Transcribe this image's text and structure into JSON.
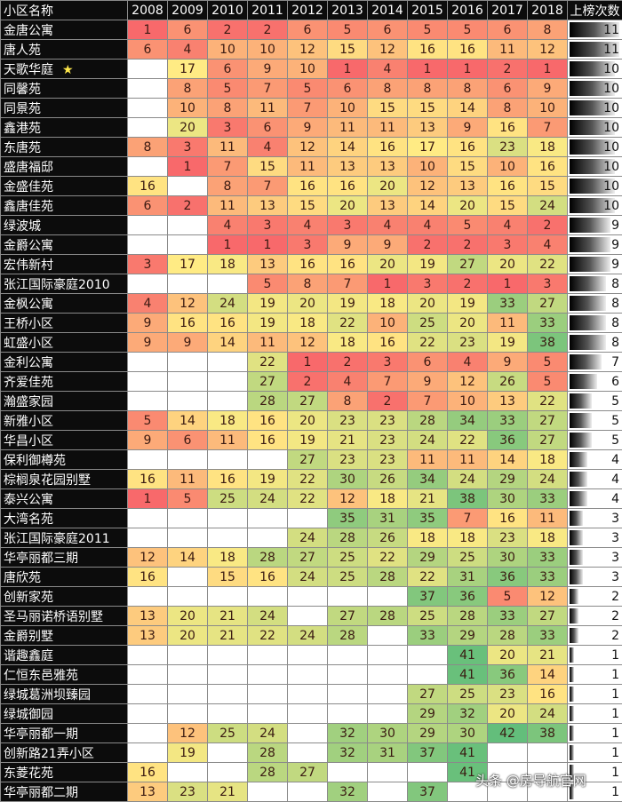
{
  "chart_data": {
    "type": "table",
    "title": "",
    "header": {
      "name_col": "小区名称",
      "count_col": "上榜次数"
    },
    "years": [
      "2008",
      "2009",
      "2010",
      "2011",
      "2012",
      "2013",
      "2014",
      "2015",
      "2016",
      "2017",
      "2018"
    ],
    "rows": [
      {
        "name": "金唐公寓",
        "star": false,
        "values": [
          1,
          6,
          2,
          2,
          6,
          5,
          6,
          5,
          5,
          6,
          8
        ],
        "count": 11
      },
      {
        "name": "唐人苑",
        "star": false,
        "values": [
          6,
          4,
          10,
          10,
          12,
          15,
          12,
          16,
          16,
          11,
          12
        ],
        "count": 11
      },
      {
        "name": "天歌华庭",
        "star": true,
        "values": [
          null,
          17,
          6,
          9,
          10,
          1,
          4,
          1,
          1,
          2,
          1
        ],
        "count": 10
      },
      {
        "name": "同馨苑",
        "star": false,
        "values": [
          null,
          8,
          5,
          7,
          5,
          6,
          8,
          8,
          8,
          6,
          9
        ],
        "count": 10
      },
      {
        "name": "同景苑",
        "star": false,
        "values": [
          null,
          10,
          8,
          11,
          7,
          10,
          15,
          15,
          14,
          8,
          10
        ],
        "count": 10
      },
      {
        "name": "鑫港苑",
        "star": false,
        "values": [
          null,
          20,
          3,
          6,
          9,
          11,
          11,
          13,
          9,
          16,
          7
        ],
        "count": 10
      },
      {
        "name": "东唐苑",
        "star": false,
        "values": [
          8,
          3,
          11,
          4,
          12,
          14,
          16,
          17,
          16,
          23,
          18
        ],
        "count": 10
      },
      {
        "name": "盛唐福邸",
        "star": false,
        "values": [
          null,
          1,
          7,
          15,
          11,
          13,
          13,
          10,
          15,
          10,
          16
        ],
        "count": 10
      },
      {
        "name": "金盛佳苑",
        "star": false,
        "values": [
          16,
          null,
          8,
          7,
          16,
          16,
          20,
          12,
          13,
          16,
          15
        ],
        "count": 10
      },
      {
        "name": "鑫唐佳苑",
        "star": false,
        "values": [
          6,
          2,
          11,
          13,
          15,
          20,
          13,
          14,
          20,
          15,
          24
        ],
        "count": 10
      },
      {
        "name": "绿波城",
        "star": false,
        "values": [
          null,
          null,
          4,
          3,
          4,
          3,
          4,
          4,
          5,
          4,
          2
        ],
        "count": 9
      },
      {
        "name": "金爵公寓",
        "star": false,
        "values": [
          null,
          null,
          1,
          1,
          3,
          9,
          9,
          2,
          2,
          3,
          4
        ],
        "count": 9
      },
      {
        "name": "宏伟新村",
        "star": false,
        "values": [
          3,
          17,
          18,
          13,
          16,
          16,
          20,
          19,
          27,
          20,
          22
        ],
        "count": 9
      },
      {
        "name": "张江国际豪庭2010",
        "star": false,
        "values": [
          null,
          null,
          null,
          5,
          8,
          7,
          1,
          3,
          2,
          1,
          3
        ],
        "count": 8
      },
      {
        "name": "金枫公寓",
        "star": false,
        "values": [
          4,
          12,
          24,
          19,
          20,
          19,
          18,
          20,
          19,
          33,
          27
        ],
        "count": 8
      },
      {
        "name": "王桥小区",
        "star": false,
        "values": [
          9,
          16,
          16,
          19,
          18,
          22,
          10,
          25,
          20,
          11,
          33
        ],
        "count": 8
      },
      {
        "name": "虹盛小区",
        "star": false,
        "values": [
          9,
          9,
          14,
          11,
          12,
          18,
          16,
          22,
          23,
          19,
          38
        ],
        "count": 8
      },
      {
        "name": "金利公寓",
        "star": false,
        "values": [
          null,
          null,
          null,
          22,
          1,
          2,
          3,
          6,
          4,
          9,
          5
        ],
        "count": 7
      },
      {
        "name": "齐爱佳苑",
        "star": false,
        "values": [
          null,
          null,
          null,
          27,
          2,
          4,
          7,
          9,
          12,
          26,
          5
        ],
        "count": 6
      },
      {
        "name": "瀚盛家园",
        "star": false,
        "values": [
          null,
          null,
          null,
          28,
          27,
          8,
          2,
          7,
          10,
          13,
          22
        ],
        "count": 5
      },
      {
        "name": "新雅小区",
        "star": false,
        "values": [
          5,
          14,
          18,
          16,
          20,
          23,
          23,
          28,
          34,
          33,
          27
        ],
        "count": 5
      },
      {
        "name": "华昌小区",
        "star": false,
        "values": [
          9,
          6,
          11,
          16,
          19,
          21,
          23,
          24,
          22,
          36,
          27
        ],
        "count": 5
      },
      {
        "name": "保利御樽苑",
        "star": false,
        "values": [
          null,
          null,
          null,
          null,
          27,
          23,
          23,
          11,
          11,
          14,
          18
        ],
        "count": 4
      },
      {
        "name": "棕榈泉花园别墅",
        "star": false,
        "values": [
          16,
          11,
          16,
          19,
          22,
          30,
          26,
          34,
          24,
          29,
          24
        ],
        "count": 4
      },
      {
        "name": "泰兴公寓",
        "star": false,
        "values": [
          1,
          5,
          25,
          24,
          22,
          12,
          18,
          21,
          38,
          30,
          33
        ],
        "count": 4
      },
      {
        "name": "大湾名苑",
        "star": false,
        "values": [
          null,
          null,
          null,
          null,
          null,
          35,
          31,
          35,
          7,
          16,
          11
        ],
        "count": 3
      },
      {
        "name": "张江国际豪庭2011",
        "star": false,
        "values": [
          null,
          null,
          null,
          null,
          24,
          28,
          26,
          18,
          18,
          23,
          18
        ],
        "count": 3
      },
      {
        "name": "华亭丽都三期",
        "star": false,
        "values": [
          12,
          14,
          18,
          28,
          27,
          25,
          22,
          29,
          25,
          30,
          33
        ],
        "count": 3
      },
      {
        "name": "唐欣苑",
        "star": false,
        "values": [
          16,
          null,
          15,
          16,
          24,
          25,
          28,
          22,
          31,
          36,
          33
        ],
        "count": 3
      },
      {
        "name": "创新家苑",
        "star": false,
        "values": [
          null,
          null,
          null,
          null,
          null,
          null,
          null,
          37,
          36,
          5,
          12
        ],
        "count": 2
      },
      {
        "name": "圣马丽诺桥语别墅",
        "star": false,
        "values": [
          13,
          20,
          21,
          24,
          null,
          27,
          28,
          25,
          28,
          33,
          27
        ],
        "count": 2
      },
      {
        "name": "金爵别墅",
        "star": false,
        "values": [
          13,
          20,
          21,
          22,
          24,
          28,
          null,
          33,
          29,
          28,
          33
        ],
        "count": 2
      },
      {
        "name": "谐趣鑫庭",
        "star": false,
        "values": [
          null,
          null,
          null,
          null,
          null,
          null,
          null,
          null,
          41,
          20,
          21
        ],
        "count": 1
      },
      {
        "name": "仁恒东邑雅苑",
        "star": false,
        "values": [
          null,
          null,
          null,
          null,
          null,
          null,
          null,
          null,
          41,
          36,
          14
        ],
        "count": 1
      },
      {
        "name": "绿城葛洲坝臻园",
        "star": false,
        "values": [
          null,
          null,
          null,
          null,
          null,
          null,
          null,
          27,
          25,
          23,
          16
        ],
        "count": 1
      },
      {
        "name": "绿城御园",
        "star": false,
        "values": [
          null,
          null,
          null,
          null,
          null,
          null,
          null,
          29,
          32,
          20,
          24
        ],
        "count": 1
      },
      {
        "name": "华亭丽都一期",
        "star": false,
        "values": [
          null,
          12,
          25,
          24,
          null,
          32,
          30,
          29,
          30,
          42,
          38
        ],
        "count": 1
      },
      {
        "name": "创新路21弄小区",
        "star": false,
        "values": [
          null,
          19,
          null,
          28,
          null,
          32,
          31,
          37,
          41,
          null,
          null
        ],
        "count": 1
      },
      {
        "name": "东菱花苑",
        "star": false,
        "values": [
          16,
          null,
          null,
          28,
          27,
          null,
          null,
          null,
          41,
          null,
          null
        ],
        "count": 1
      },
      {
        "name": "华亭丽都二期",
        "star": false,
        "values": [
          13,
          23,
          21,
          null,
          null,
          32,
          null,
          37,
          null,
          null,
          null
        ],
        "count": 1
      }
    ],
    "color_scale": {
      "low_rank": "#f8696b",
      "mid_rank": "#ffeb84",
      "high_rank": "#63be7b"
    },
    "count_max": 11
  },
  "star_glyph": "★",
  "watermark": "头条 @房导航官网"
}
